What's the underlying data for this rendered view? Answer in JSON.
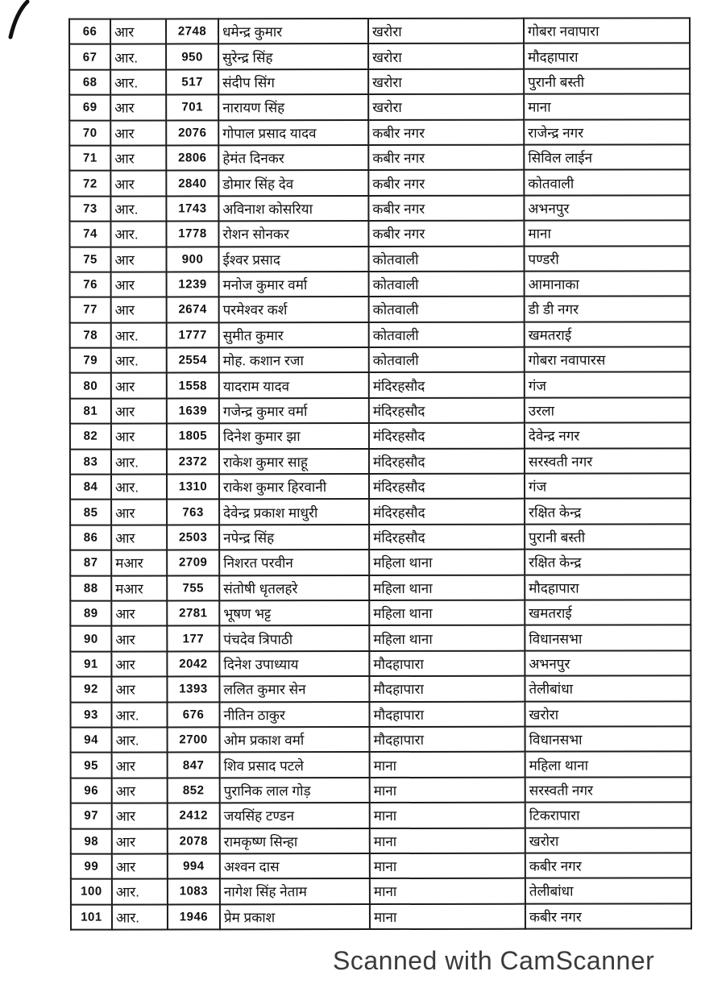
{
  "watermark": {
    "text": "Scanned with CamScanner"
  },
  "table": {
    "rows": [
      {
        "sno": "66",
        "rank": "आर",
        "number": "2748",
        "name": "धमेन्द्र कुमार",
        "station": "खरोरा",
        "posting": "गोबरा नवापारा"
      },
      {
        "sno": "67",
        "rank": "आर.",
        "number": "950",
        "name": "सुरेन्द्र सिंह",
        "station": "खरोरा",
        "posting": "मौदहापारा"
      },
      {
        "sno": "68",
        "rank": "आर.",
        "number": "517",
        "name": "संदीप सिंग",
        "station": "खरोरा",
        "posting": "पुरानी बस्ती"
      },
      {
        "sno": "69",
        "rank": "आर",
        "number": "701",
        "name": "नारायण सिंह",
        "station": "खरोरा",
        "posting": "माना"
      },
      {
        "sno": "70",
        "rank": "आर",
        "number": "2076",
        "name": "गोपाल प्रसाद यादव",
        "station": "कबीर नगर",
        "posting": "राजेन्द्र नगर"
      },
      {
        "sno": "71",
        "rank": "आर",
        "number": "2806",
        "name": "हेमंत दिनकर",
        "station": "कबीर नगर",
        "posting": "सिविल लाईन"
      },
      {
        "sno": "72",
        "rank": "आर",
        "number": "2840",
        "name": "डोमार सिंह देव",
        "station": "कबीर नगर",
        "posting": "कोतवाली"
      },
      {
        "sno": "73",
        "rank": "आर.",
        "number": "1743",
        "name": "अविनाश कोसरिया",
        "station": "कबीर नगर",
        "posting": "अभनपुर"
      },
      {
        "sno": "74",
        "rank": "आर.",
        "number": "1778",
        "name": "रोशन सोनकर",
        "station": "कबीर नगर",
        "posting": "माना"
      },
      {
        "sno": "75",
        "rank": "आर",
        "number": "900",
        "name": "ईश्वर प्रसाद",
        "station": "कोतवाली",
        "posting": "पण्डरी"
      },
      {
        "sno": "76",
        "rank": "आर",
        "number": "1239",
        "name": "मनोज कुमार वर्मा",
        "station": "कोतवाली",
        "posting": "आमानाका"
      },
      {
        "sno": "77",
        "rank": "आर",
        "number": "2674",
        "name": "परमेश्वर कर्श",
        "station": "कोतवाली",
        "posting": "डी डी नगर"
      },
      {
        "sno": "78",
        "rank": "आर.",
        "number": "1777",
        "name": "सुमीत कुमार",
        "station": "कोतवाली",
        "posting": "खमतराई"
      },
      {
        "sno": "79",
        "rank": "आर.",
        "number": "2554",
        "name": "मोह. कशान रजा",
        "station": "कोतवाली",
        "posting": "गोबरा नवापारस"
      },
      {
        "sno": "80",
        "rank": "आर",
        "number": "1558",
        "name": "यादराम यादव",
        "station": "मंदिरहसौद",
        "posting": "गंज"
      },
      {
        "sno": "81",
        "rank": "आर",
        "number": "1639",
        "name": "गजेन्द्र कुमार वर्मा",
        "station": "मंदिरहसौद",
        "posting": "उरला"
      },
      {
        "sno": "82",
        "rank": "आर",
        "number": "1805",
        "name": "दिनेश कुमार झा",
        "station": "मंदिरहसौद",
        "posting": "देवेन्द्र नगर"
      },
      {
        "sno": "83",
        "rank": "आर.",
        "number": "2372",
        "name": "राकेश कुमार साहू",
        "station": "मंदिरहसौद",
        "posting": "सरस्वती नगर"
      },
      {
        "sno": "84",
        "rank": "आर.",
        "number": "1310",
        "name": "राकेश कुमार हिरवानी",
        "station": "मंदिरहसौद",
        "posting": "गंज"
      },
      {
        "sno": "85",
        "rank": "आर",
        "number": "763",
        "name": "देवेन्द्र प्रकाश माधुरी",
        "station": "मंदिरहसौद",
        "posting": "रक्षित केन्द्र"
      },
      {
        "sno": "86",
        "rank": "आर",
        "number": "2503",
        "name": "नपेन्द्र सिंह",
        "station": "मंदिरहसौद",
        "posting": "पुरानी बस्ती"
      },
      {
        "sno": "87",
        "rank": "मआर",
        "number": "2709",
        "name": "निशरत परवीन",
        "station": "महिला थाना",
        "posting": "रक्षित केन्द्र"
      },
      {
        "sno": "88",
        "rank": "मआर",
        "number": "755",
        "name": "संतोषी धृतलहरे",
        "station": "महिला थाना",
        "posting": "मौदहापारा"
      },
      {
        "sno": "89",
        "rank": "आर",
        "number": "2781",
        "name": "भूषण भट्ट",
        "station": "महिला थाना",
        "posting": "खमतराई"
      },
      {
        "sno": "90",
        "rank": "आर",
        "number": "177",
        "name": "पंचदेव त्रिपाठी",
        "station": "महिला थाना",
        "posting": "विधानसभा"
      },
      {
        "sno": "91",
        "rank": "आर",
        "number": "2042",
        "name": "दिनेश उपाध्याय",
        "station": "मौदहापारा",
        "posting": "अभनपुर"
      },
      {
        "sno": "92",
        "rank": "आर",
        "number": "1393",
        "name": "ललित कुमार सेन",
        "station": "मौदहापारा",
        "posting": "तेलीबांधा"
      },
      {
        "sno": "93",
        "rank": "आर.",
        "number": "676",
        "name": "नीतिन ठाकुर",
        "station": "मौदहापारा",
        "posting": "खरोरा"
      },
      {
        "sno": "94",
        "rank": "आर.",
        "number": "2700",
        "name": "ओम प्रकाश वर्मा",
        "station": "मौदहापारा",
        "posting": "विधानसभा"
      },
      {
        "sno": "95",
        "rank": "आर",
        "number": "847",
        "name": "शिव प्रसाद पटले",
        "station": "माना",
        "posting": "महिला थाना"
      },
      {
        "sno": "96",
        "rank": "आर",
        "number": "852",
        "name": "पुरानिक लाल गोड़",
        "station": "माना",
        "posting": "सरस्वती नगर"
      },
      {
        "sno": "97",
        "rank": "आर",
        "number": "2412",
        "name": "जयसिंह टण्डन",
        "station": "माना",
        "posting": "टिकरापारा"
      },
      {
        "sno": "98",
        "rank": "आर",
        "number": "2078",
        "name": "रामकृष्ण सिन्हा",
        "station": "माना",
        "posting": "खरोरा"
      },
      {
        "sno": "99",
        "rank": "आर",
        "number": "994",
        "name": "अश्वन दास",
        "station": "माना",
        "posting": "कबीर नगर"
      },
      {
        "sno": "100",
        "rank": "आर.",
        "number": "1083",
        "name": "नागेश सिंह नेताम",
        "station": "माना",
        "posting": "तेलीबांधा"
      },
      {
        "sno": "101",
        "rank": "आर.",
        "number": "1946",
        "name": "प्रेम प्रकाश",
        "station": "माना",
        "posting": "कबीर नगर"
      }
    ]
  }
}
